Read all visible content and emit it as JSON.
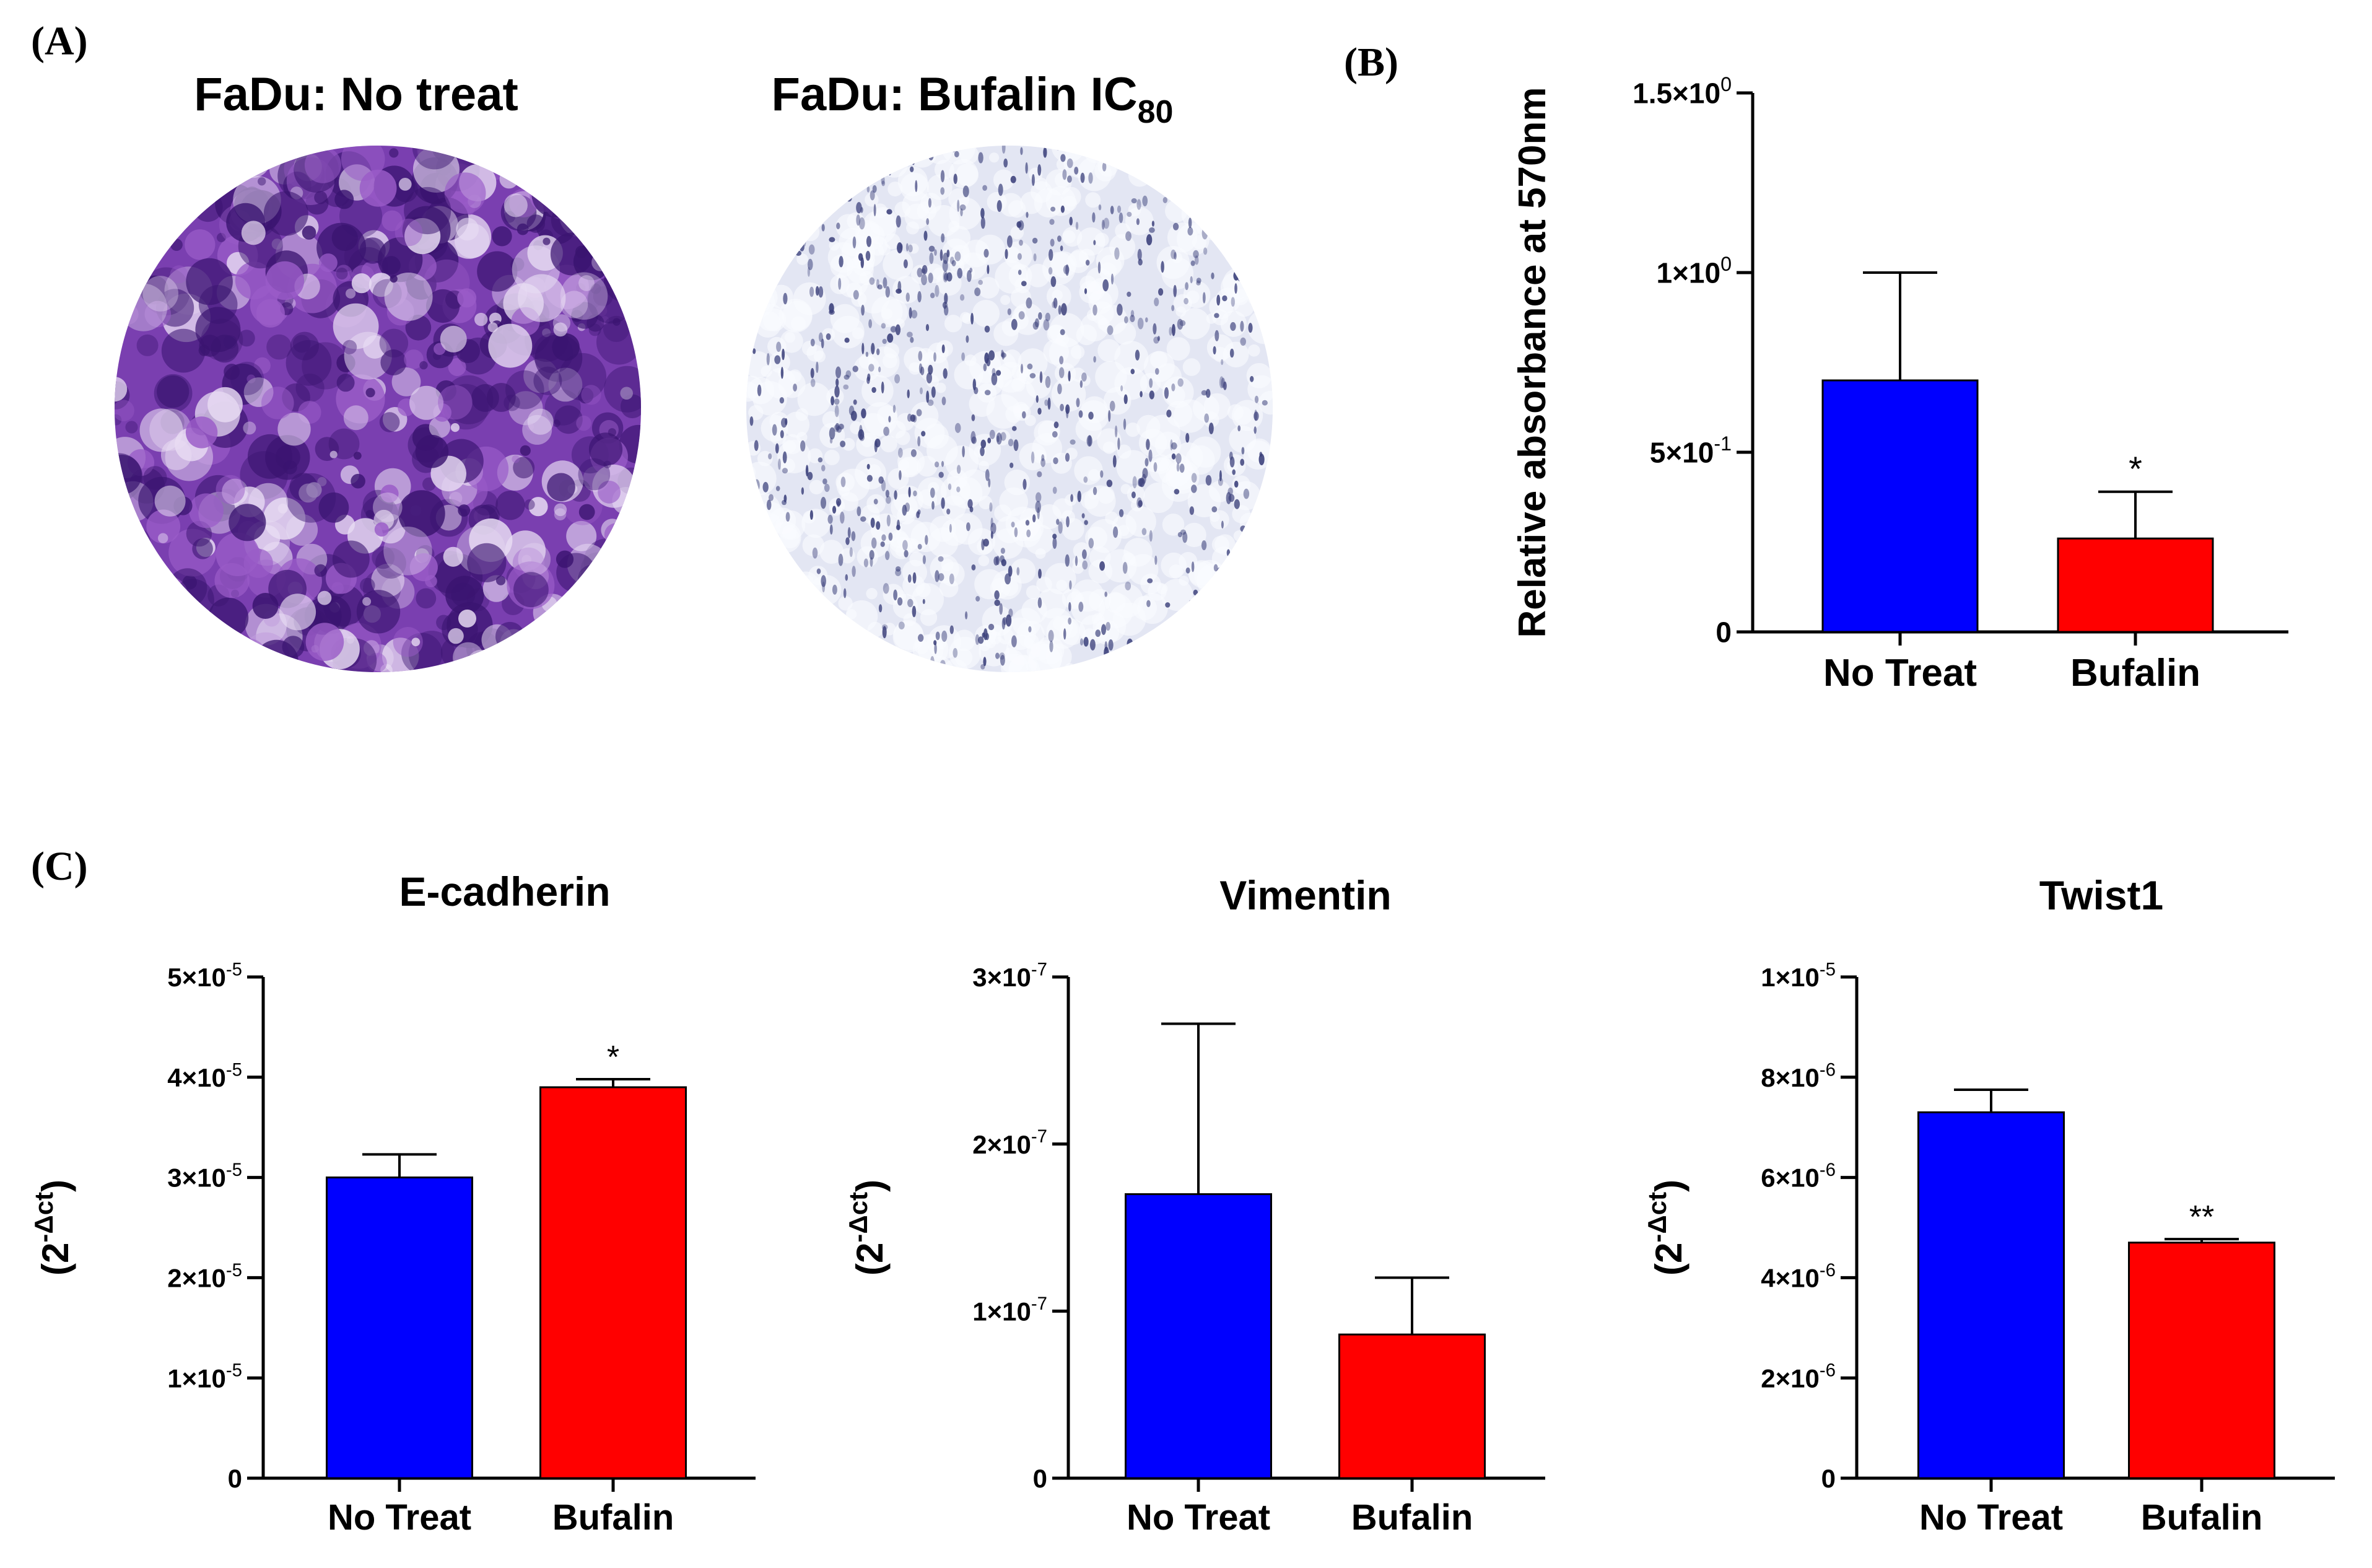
{
  "panels": {
    "a": {
      "letter": "(A)"
    },
    "b": {
      "letter": "(B)"
    },
    "c": {
      "letter": "(C)"
    }
  },
  "images": {
    "left_title": "FaDu: No treat",
    "right_title_main": "FaDu: Bufalin IC",
    "right_title_sub": "80",
    "left_colors": {
      "base": "#7a3fb0",
      "dark": "#3a1470",
      "light": "#e8dcf3"
    },
    "right_colors": {
      "base": "#e3e6f3",
      "dot": "#3a3f7a",
      "light": "#fafbff"
    }
  },
  "colors": {
    "no_treat": "#0000ff",
    "bufalin": "#ff0000",
    "axis": "#000000"
  },
  "chart_data": [
    {
      "id": "B",
      "type": "bar",
      "title": "",
      "categories": [
        "No Treat",
        "Bufalin"
      ],
      "values": [
        0.7,
        0.26
      ],
      "errors": [
        0.3,
        0.13
      ],
      "ylabel": "Relative absorbance at 570nm",
      "ylim": [
        0,
        1.5
      ],
      "ytick_values": [
        0,
        0.5,
        1.0,
        1.5
      ],
      "ytick_labels": [
        {
          "mant": "0",
          "exp": ""
        },
        {
          "mant": "5×10",
          "exp": "-1"
        },
        {
          "mant": "1×10",
          "exp": "0"
        },
        {
          "mant": "1.5×10",
          "exp": "0"
        }
      ],
      "significance": [
        "",
        "*"
      ]
    },
    {
      "id": "C1",
      "type": "bar",
      "title": "E-cadherin",
      "categories": [
        "No Treat",
        "Bufalin"
      ],
      "values": [
        3e-05,
        3.9e-05
      ],
      "errors": [
        2.3e-06,
        8e-07
      ],
      "ylabel": "(2-Δct)",
      "ylabel_base": "(2",
      "ylabel_exp": "-Δct",
      "ylabel_close": ")",
      "ylim": [
        0,
        5e-05
      ],
      "ytick_values": [
        0,
        1e-05,
        2e-05,
        3e-05,
        4e-05,
        5e-05
      ],
      "ytick_labels": [
        {
          "mant": "0",
          "exp": ""
        },
        {
          "mant": "1×10",
          "exp": "-5"
        },
        {
          "mant": "2×10",
          "exp": "-5"
        },
        {
          "mant": "3×10",
          "exp": "-5"
        },
        {
          "mant": "4×10",
          "exp": "-5"
        },
        {
          "mant": "5×10",
          "exp": "-5"
        }
      ],
      "significance": [
        "",
        "*"
      ]
    },
    {
      "id": "C2",
      "type": "bar",
      "title": "Vimentin",
      "categories": [
        "No Treat",
        "Bufalin"
      ],
      "values": [
        1.7e-07,
        8.6e-08
      ],
      "errors": [
        1.02e-07,
        3.4e-08
      ],
      "ylabel": "(2-Δct)",
      "ylabel_base": "(2",
      "ylabel_exp": "-Δct",
      "ylabel_close": ")",
      "ylim": [
        0,
        3e-07
      ],
      "ytick_values": [
        0,
        1e-07,
        2e-07,
        3e-07
      ],
      "ytick_labels": [
        {
          "mant": "0",
          "exp": ""
        },
        {
          "mant": "1×10",
          "exp": "-7"
        },
        {
          "mant": "2×10",
          "exp": "-7"
        },
        {
          "mant": "3×10",
          "exp": "-7"
        }
      ],
      "significance": [
        "",
        ""
      ]
    },
    {
      "id": "C3",
      "type": "bar",
      "title": "Twist1",
      "categories": [
        "No Treat",
        "Bufalin"
      ],
      "values": [
        7.3e-06,
        4.7e-06
      ],
      "errors": [
        4.5e-07,
        7e-08
      ],
      "ylabel": "(2-Δct)",
      "ylabel_base": "(2",
      "ylabel_exp": "-Δct",
      "ylabel_close": ")",
      "ylim": [
        0,
        1e-05
      ],
      "ytick_values": [
        0,
        2e-06,
        4e-06,
        6e-06,
        8e-06,
        1e-05
      ],
      "ytick_labels": [
        {
          "mant": "0",
          "exp": ""
        },
        {
          "mant": "2×10",
          "exp": "-6"
        },
        {
          "mant": "4×10",
          "exp": "-6"
        },
        {
          "mant": "6×10",
          "exp": "-6"
        },
        {
          "mant": "8×10",
          "exp": "-6"
        },
        {
          "mant": "1×10",
          "exp": "-5"
        }
      ],
      "significance": [
        "",
        "**"
      ]
    }
  ]
}
